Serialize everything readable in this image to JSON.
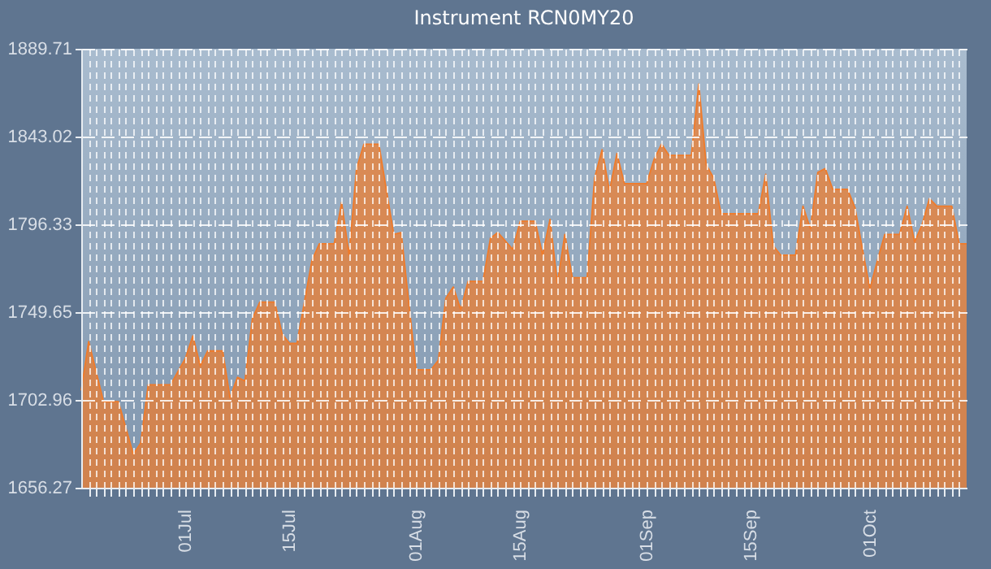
{
  "chart_data": {
    "type": "area",
    "title": "Instrument RCN0MY20",
    "x": [
      "--06-17",
      "--06-18",
      "--06-20",
      "--06-22",
      "--06-24",
      "--06-25",
      "--06-26",
      "--06-29",
      "--07-01",
      "--07-02",
      "--07-03",
      "--07-04",
      "--07-06",
      "--07-07",
      "--07-08",
      "--07-09",
      "--07-10",
      "--07-11",
      "--07-13",
      "--07-14",
      "--07-15",
      "--07-16",
      "--07-18",
      "--07-19",
      "--07-21",
      "--07-22",
      "--07-23",
      "--07-24",
      "--07-25",
      "--07-27",
      "--07-29",
      "--07-30",
      "--08-01",
      "--08-03",
      "--08-04",
      "--08-05",
      "--08-06",
      "--08-07",
      "--08-08",
      "--08-10",
      "--08-11",
      "--08-12",
      "--08-14",
      "--08-15",
      "--08-17",
      "--08-18",
      "--08-19",
      "--08-20",
      "--08-21",
      "--08-22",
      "--08-24",
      "--08-25",
      "--08-26",
      "--08-27",
      "--08-28",
      "--08-29",
      "--09-01",
      "--09-02",
      "--09-03",
      "--09-04",
      "--09-07",
      "--09-08",
      "--09-09",
      "--09-10",
      "--09-11",
      "--09-16",
      "--09-17",
      "--09-18",
      "--09-19",
      "--09-21",
      "--09-22",
      "--09-23",
      "--09-24",
      "--09-25",
      "--09-26",
      "--09-28",
      "--09-29",
      "--09-30",
      "--10-01",
      "--10-02",
      "--10-03",
      "--10-05",
      "--10-06",
      "--10-07",
      "--10-08",
      "--10-09",
      "--10-10",
      "--10-12",
      "--10-13",
      "--10-14"
    ],
    "series": [
      {
        "color": "#f07b2a",
        "values": [
          1708,
          1734,
          1702,
          1702,
          1674,
          1680,
          1711,
          1711,
          1725,
          1737,
          1721,
          1729,
          1729,
          1704,
          1715,
          1713,
          1746,
          1755,
          1755,
          1738,
          1733,
          1733,
          1777,
          1786,
          1786,
          1808,
          1780,
          1826,
          1839,
          1839,
          1791,
          1792,
          1719,
          1719,
          1724,
          1757,
          1763,
          1751,
          1766,
          1766,
          1789,
          1792,
          1783,
          1798,
          1798,
          1780,
          1799,
          1765,
          1791,
          1768,
          1768,
          1821,
          1836,
          1814,
          1834,
          1818,
          1818,
          1831,
          1839,
          1833,
          1833,
          1871,
          1828,
          1821,
          1802,
          1802,
          1823,
          1785,
          1780,
          1780,
          1806,
          1794,
          1824,
          1826,
          1815,
          1815,
          1805,
          1783,
          1762,
          1777,
          1791,
          1791,
          1806,
          1787,
          1796,
          1810,
          1806,
          1806,
          1786,
          1786
        ]
      }
    ],
    "xlim": [
      "--06-17",
      "--10-14"
    ],
    "xticks": [
      {
        "value": "--07-01",
        "label": "01Jul"
      },
      {
        "value": "--07-15",
        "label": "15Jul"
      },
      {
        "value": "--08-01",
        "label": "01Aug"
      },
      {
        "value": "--08-15",
        "label": "15Aug"
      },
      {
        "value": "--09-01",
        "label": "01Sep"
      },
      {
        "value": "--09-15",
        "label": "15Sep"
      },
      {
        "value": "--10-01",
        "label": "01Oct"
      }
    ],
    "ylim": [
      1656.27,
      1889.71
    ],
    "yticks": [
      1656.27,
      1702.96,
      1749.65,
      1796.33,
      1843.02,
      1889.71
    ],
    "grid": true
  }
}
